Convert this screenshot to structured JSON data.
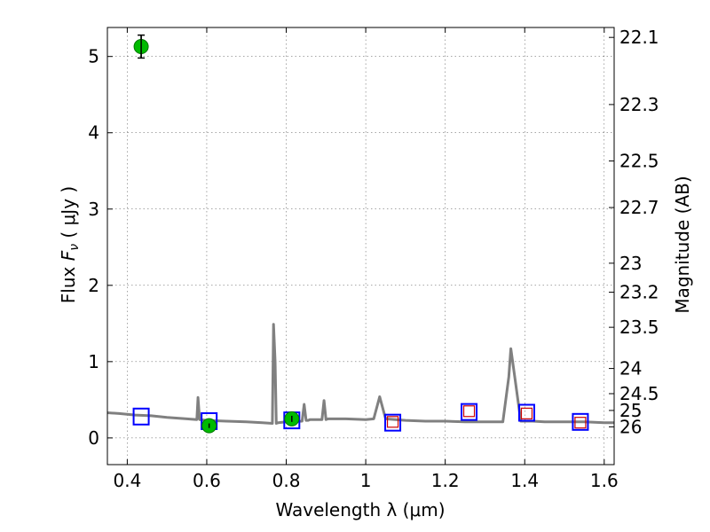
{
  "chart_data": {
    "type": "line",
    "xlabel": "Wavelength  λ (μm)",
    "ylabel_parts": [
      "Flux ",
      "F",
      "ν",
      " ( μJy )"
    ],
    "y2label": "Magnitude (AB)",
    "xlim": [
      0.35,
      1.625
    ],
    "ylim": [
      -0.35,
      5.38
    ],
    "x_ticks": [
      0.4,
      0.6,
      0.8,
      1.0,
      1.2,
      1.4,
      1.6
    ],
    "x_tick_labels": [
      "0.4",
      "0.6",
      "0.8",
      "1",
      "1.2",
      "1.4",
      "1.6"
    ],
    "y_ticks": [
      0,
      1,
      2,
      3,
      4,
      5
    ],
    "y_tick_labels": [
      "0",
      "1",
      "2",
      "3",
      "4",
      "5"
    ],
    "y2_ticks": [
      {
        "label": "22.1",
        "flux": 5.25
      },
      {
        "label": "22.3",
        "flux": 4.37
      },
      {
        "label": "22.5",
        "flux": 3.63
      },
      {
        "label": "22.7",
        "flux": 3.02
      },
      {
        "label": "23",
        "flux": 2.29
      },
      {
        "label": "23.2",
        "flux": 1.91
      },
      {
        "label": "23.5",
        "flux": 1.45
      },
      {
        "label": "24",
        "flux": 0.91
      },
      {
        "label": "24.5",
        "flux": 0.58
      },
      {
        "label": "25",
        "flux": 0.36
      },
      {
        "label": "26",
        "flux": 0.145
      }
    ],
    "grid": true,
    "series": [
      {
        "kind": "model",
        "color": "#808080",
        "x": [
          0.35,
          0.38,
          0.42,
          0.46,
          0.5,
          0.55,
          0.575,
          0.578,
          0.582,
          0.6,
          0.65,
          0.7,
          0.74,
          0.765,
          0.768,
          0.772,
          0.775,
          0.78,
          0.8,
          0.84,
          0.845,
          0.85,
          0.855,
          0.86,
          0.89,
          0.895,
          0.9,
          0.905,
          0.91,
          0.95,
          1.0,
          1.02,
          1.035,
          1.05,
          1.1,
          1.15,
          1.2,
          1.25,
          1.3,
          1.33,
          1.345,
          1.36,
          1.365,
          1.375,
          1.39,
          1.42,
          1.45,
          1.5,
          1.55,
          1.6,
          1.625
        ],
        "y": [
          0.33,
          0.32,
          0.3,
          0.29,
          0.27,
          0.25,
          0.24,
          0.53,
          0.24,
          0.23,
          0.22,
          0.21,
          0.2,
          0.19,
          1.49,
          1.0,
          0.19,
          0.2,
          0.21,
          0.22,
          0.44,
          0.23,
          0.23,
          0.24,
          0.24,
          0.49,
          0.24,
          0.25,
          0.25,
          0.25,
          0.24,
          0.25,
          0.54,
          0.25,
          0.23,
          0.22,
          0.22,
          0.21,
          0.21,
          0.21,
          0.21,
          0.8,
          1.17,
          0.8,
          0.22,
          0.22,
          0.21,
          0.21,
          0.21,
          0.2,
          0.2
        ]
      },
      {
        "kind": "model-photometry",
        "color": "#0000ff",
        "marker": "square",
        "x": [
          0.435,
          0.606,
          0.814,
          1.068,
          1.26,
          1.405,
          1.54
        ],
        "y": [
          0.28,
          0.22,
          0.23,
          0.2,
          0.34,
          0.33,
          0.21
        ]
      },
      {
        "kind": "observed-photometry",
        "color": "#00bb00",
        "marker": "circle",
        "x": [
          0.435,
          0.606,
          0.814
        ],
        "y": [
          5.13,
          0.16,
          0.25
        ],
        "err": [
          0.15,
          0.03,
          0.04
        ]
      },
      {
        "kind": "upper-limits",
        "color": "#cc0000",
        "marker": "open-square",
        "x": [
          1.068,
          1.26,
          1.405,
          1.54
        ],
        "y": [
          0.21,
          0.35,
          0.32,
          0.2
        ]
      }
    ]
  }
}
